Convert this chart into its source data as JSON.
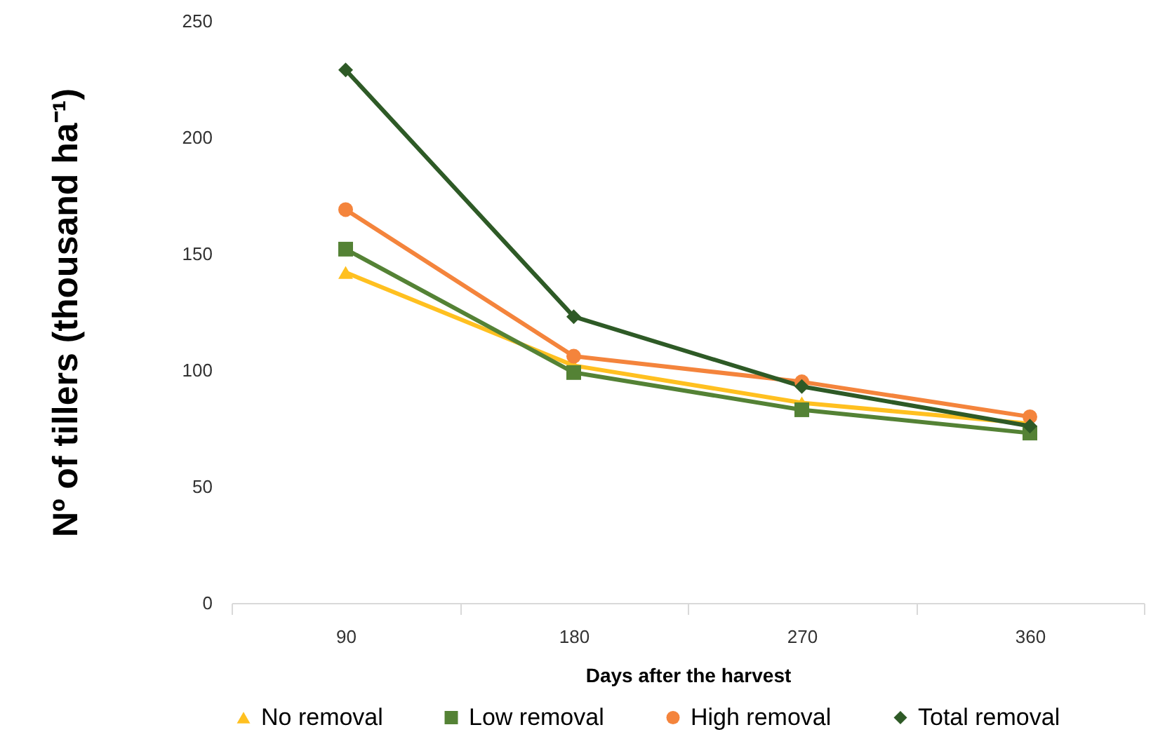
{
  "chart_data": {
    "type": "line",
    "xlabel": "Days after the harvest",
    "ylabel": "Nº of tillers (thousand ha⁻¹)",
    "categories": [
      "90",
      "180",
      "270",
      "360"
    ],
    "ylim": [
      0,
      250
    ],
    "yticks": [
      0,
      50,
      100,
      150,
      200,
      250
    ],
    "grid": false,
    "legend": "bottom",
    "series": [
      {
        "name": "No removal",
        "color": "#ffc020",
        "marker": "triangle",
        "values": [
          142,
          102,
          86,
          77
        ]
      },
      {
        "name": "Low removal",
        "color": "#548235",
        "marker": "square",
        "values": [
          152,
          99,
          83,
          73
        ]
      },
      {
        "name": "High removal",
        "color": "#f4843c",
        "marker": "circle",
        "values": [
          169,
          106,
          95,
          80
        ]
      },
      {
        "name": "Total removal",
        "color": "#2e5a26",
        "marker": "diamond",
        "values": [
          229,
          123,
          93,
          76
        ]
      }
    ]
  }
}
